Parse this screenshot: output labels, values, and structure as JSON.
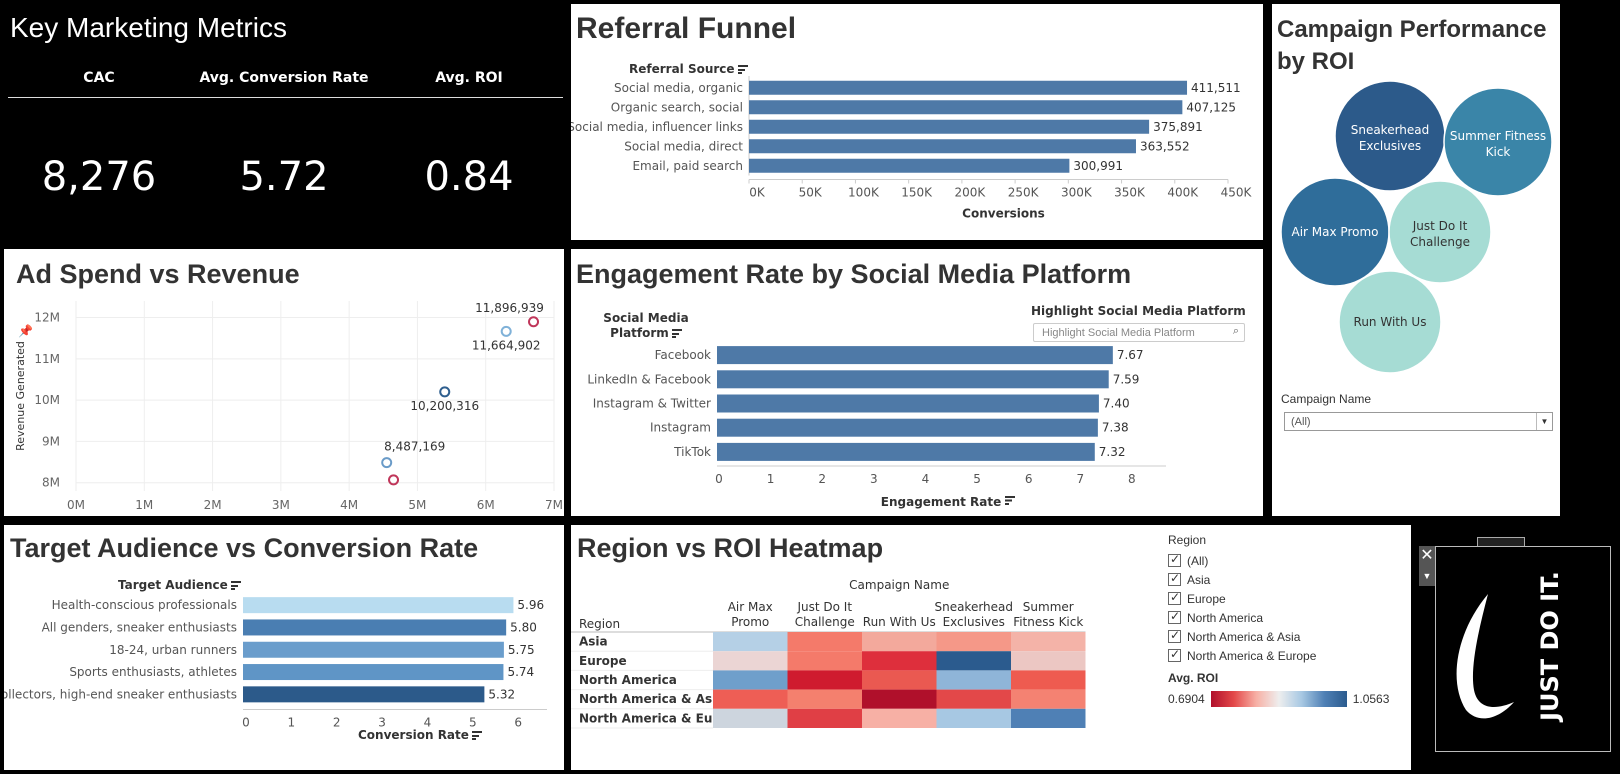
{
  "kpi": {
    "title": "Key Marketing Metrics",
    "items": [
      {
        "label": "CAC",
        "value": "8,276"
      },
      {
        "label": "Avg. Conversion Rate",
        "value": "5.72"
      },
      {
        "label": "Avg. ROI",
        "value": "0.84"
      }
    ]
  },
  "funnel": {
    "title": "Referral Funnel",
    "chart_data": {
      "type": "bar",
      "orientation": "horizontal",
      "title": "Referral Funnel",
      "row_header": "Referral Source",
      "categories": [
        "Social media, organic",
        "Organic search, social",
        "Social media, influencer links",
        "Social media, direct",
        "Email, paid search"
      ],
      "values": [
        411511,
        407125,
        375891,
        363552,
        300991
      ],
      "value_labels": [
        "411,511",
        "407,125",
        "375,891",
        "363,552",
        "300,991"
      ],
      "xlabel": "Conversions",
      "xlim": [
        0,
        450000
      ],
      "ticks": [
        0,
        50000,
        100000,
        150000,
        200000,
        250000,
        300000,
        350000,
        400000,
        450000
      ],
      "tick_labels": [
        "0K",
        "50K",
        "100K",
        "150K",
        "200K",
        "250K",
        "300K",
        "350K",
        "400K",
        "450K"
      ],
      "color": "#4e79a7"
    }
  },
  "bubbles": {
    "title_line1": "Campaign Performance",
    "title_line2": "by ROI",
    "items": [
      {
        "line1": "Sneakerhead",
        "line2": "Exclusives",
        "color": "#2c5a8a",
        "text_color": "#ffffff"
      },
      {
        "line1": "Summer Fitness",
        "line2": "Kick",
        "color": "#3a85a8",
        "text_color": "#ffffff"
      },
      {
        "line1": "Air Max Promo",
        "line2": "",
        "color": "#2f6d9a",
        "text_color": "#ffffff"
      },
      {
        "line1": "Just Do It",
        "line2": "Challenge",
        "color": "#a6dcd4",
        "text_color": "#333333"
      },
      {
        "line1": "Run With Us",
        "line2": "",
        "color": "#a6dcd4",
        "text_color": "#333333"
      }
    ],
    "filter_label": "Campaign Name",
    "filter_value": "(All)"
  },
  "scatter": {
    "title": "Ad Spend vs Revenue",
    "chart_data": {
      "type": "scatter",
      "title": "Ad Spend vs Revenue",
      "ylabel": "Revenue Generated",
      "xlabel": "",
      "xlim": [
        0,
        7000000
      ],
      "ylim": [
        7800000,
        12400000
      ],
      "x_ticks": [
        0,
        1000000,
        2000000,
        3000000,
        4000000,
        5000000,
        6000000,
        7000000
      ],
      "x_tick_labels": [
        "0M",
        "1M",
        "2M",
        "3M",
        "4M",
        "5M",
        "6M",
        "7M"
      ],
      "y_ticks": [
        8000000,
        9000000,
        10000000,
        11000000,
        12000000
      ],
      "y_tick_labels": [
        "8M",
        "9M",
        "10M",
        "11M",
        "12M"
      ],
      "points": [
        {
          "x": 6700000,
          "y": 11896939,
          "label": "11,896,939",
          "color": "#c0365a"
        },
        {
          "x": 6300000,
          "y": 11664902,
          "label": "11,664,902",
          "color": "#7fb1d8"
        },
        {
          "x": 5400000,
          "y": 10200316,
          "label": "10,200,316",
          "color": "#2f5f8f"
        },
        {
          "x": 4550000,
          "y": 8487169,
          "label": "8,487,169",
          "color": "#6a9bc8"
        },
        {
          "x": 4650000,
          "y": 8070000,
          "label": "",
          "color": "#c0365a"
        }
      ]
    }
  },
  "engagement": {
    "title": "Engagement Rate by Social Media Platform",
    "highlight_label": "Highlight Social Media Platform",
    "highlight_placeholder": "Highlight Social Media Platform",
    "chart_data": {
      "type": "bar",
      "orientation": "horizontal",
      "row_header_line1": "Social Media",
      "row_header_line2": "Platform",
      "categories": [
        "Facebook",
        "LinkedIn & Facebook",
        "Instagram & Twitter",
        "Instagram",
        "TikTok"
      ],
      "values": [
        7.67,
        7.59,
        7.4,
        7.38,
        7.32
      ],
      "value_labels": [
        "7.67",
        "7.59",
        "7.40",
        "7.38",
        "7.32"
      ],
      "xlabel": "Engagement Rate",
      "xlim": [
        0,
        8.7
      ],
      "ticks": [
        0,
        1,
        2,
        3,
        4,
        5,
        6,
        7,
        8
      ],
      "color": "#4e79a7"
    }
  },
  "audience": {
    "title": "Target Audience vs Conversion Rate",
    "chart_data": {
      "type": "bar",
      "orientation": "horizontal",
      "row_header": "Target Audience",
      "categories": [
        "Health-conscious professionals",
        "All genders, sneaker enthusiasts",
        "18-24, urban runners",
        "Sports enthusiasts, athletes",
        "Collectors, high-end sneaker enthusiasts"
      ],
      "values": [
        5.96,
        5.8,
        5.75,
        5.74,
        5.32
      ],
      "value_labels": [
        "5.96",
        "5.80",
        "5.75",
        "5.74",
        "5.32"
      ],
      "colors": [
        "#b8dcf0",
        "#4a7eb2",
        "#6a9dcc",
        "#5f95c6",
        "#2c5a8a"
      ],
      "xlabel": "Conversion Rate",
      "xlim": [
        0,
        6.7
      ],
      "ticks": [
        0,
        1,
        2,
        3,
        4,
        5,
        6
      ]
    }
  },
  "heatmap": {
    "title": "Region vs ROI Heatmap",
    "chart_data": {
      "type": "heatmap",
      "column_header": "Campaign Name",
      "row_header": "Region",
      "columns": [
        [
          "Air Max",
          "Promo"
        ],
        [
          "Just Do It",
          "Challenge"
        ],
        [
          "Run With Us",
          ""
        ],
        [
          "Sneakerhead",
          "Exclusives"
        ],
        [
          "Summer",
          "Fitness Kick"
        ]
      ],
      "rows": [
        "Asia",
        "Europe",
        "North America",
        "North America & Asia",
        "North America & Europe"
      ],
      "colors": [
        [
          "#b5d0e6",
          "#f47a6a",
          "#f3a99c",
          "#f59888",
          "#f4b3a8"
        ],
        [
          "#ebd5d4",
          "#f47a6a",
          "#de2f3c",
          "#2b5b8e",
          "#ecc7c3"
        ],
        [
          "#6f9fcb",
          "#cf1b2f",
          "#ea5951",
          "#8fb5d8",
          "#ee5b50"
        ],
        [
          "#ee5e55",
          "#f4806e",
          "#b0102b",
          "#e34849",
          "#f48272"
        ],
        [
          "#cdd5de",
          "#e03f45",
          "#f7b0a5",
          "#a7c8e3",
          "#4f80b5"
        ]
      ]
    },
    "legend": {
      "region_label": "Region",
      "regions": [
        "(All)",
        "Asia",
        "Europe",
        "North America",
        "North America & Asia",
        "North America & Europe"
      ],
      "roi_label": "Avg. ROI",
      "roi_min": "0.6904",
      "roi_max": "1.0563"
    }
  },
  "logo": {
    "text": "JUST DO IT."
  }
}
